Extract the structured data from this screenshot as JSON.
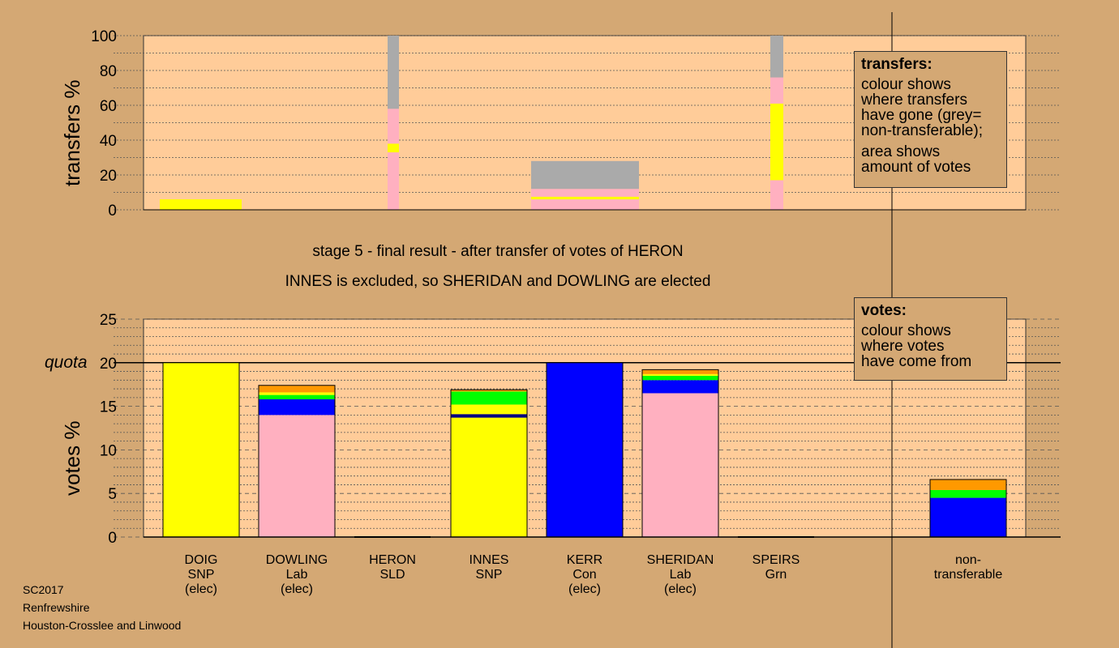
{
  "colors": {
    "bg": "#d4a874",
    "plot": "#ffcc99",
    "SNP": "#ffff00",
    "Lab": "#ffb0c0",
    "Con": "#0000ff",
    "LD": "#ff9900",
    "Grn": "#00ff00",
    "non": "#aaaaaa",
    "navy": "#000080"
  },
  "labels": {
    "transfers_axis": "transfers %",
    "votes_axis": "votes %",
    "quota": "quota",
    "stage_title": "stage 5 - final result - after transfer of votes of HERON",
    "stage_subtitle": "INNES is excluded, so SHERIDAN and DOWLING are elected"
  },
  "legend_transfers": {
    "heading": "transfers:",
    "lines": [
      "colour shows",
      "where transfers",
      "have gone (grey=",
      "non-transferable);"
    ],
    "lines2": [
      "area shows",
      "amount of votes"
    ]
  },
  "legend_votes": {
    "heading": "votes:",
    "lines": [
      "colour shows",
      "where votes",
      "have come from"
    ]
  },
  "footer": {
    "election": "SC2017",
    "council": "Renfrewshire",
    "ward": "Houston-Crosslee and Linwood"
  },
  "candidates": [
    {
      "name": "DOIG",
      "party": "SNP",
      "status": "(elec)"
    },
    {
      "name": "DOWLING",
      "party": "Lab",
      "status": "(elec)"
    },
    {
      "name": "HERON",
      "party": "SLD",
      "status": ""
    },
    {
      "name": "INNES",
      "party": "SNP",
      "status": ""
    },
    {
      "name": "KERR",
      "party": "Con",
      "status": "(elec)"
    },
    {
      "name": "SHERIDAN",
      "party": "Lab",
      "status": "(elec)"
    },
    {
      "name": "SPEIRS",
      "party": "Grn",
      "status": ""
    }
  ],
  "nontransferable": {
    "line1": "non-",
    "line2": "transferable"
  },
  "chart_data": [
    {
      "type": "bar",
      "title": "",
      "ylabel": "transfers %",
      "ylim": [
        0,
        100
      ],
      "yticks": [
        0,
        20,
        40,
        60,
        80,
        100
      ],
      "description_of_encoding": "stacked",
      "columns": [
        {
          "label": "DOIG",
          "share": 0.75,
          "segments": [
            {
              "color": "SNP",
              "from": 0,
              "to": 6
            }
          ]
        },
        {
          "label": "HERON",
          "share": 0.1,
          "segments": [
            {
              "color": "Lab",
              "from": 0,
              "to": 33
            },
            {
              "color": "SNP",
              "from": 33,
              "to": 38
            },
            {
              "color": "Lab",
              "from": 38,
              "to": 58
            },
            {
              "color": "non",
              "from": 58,
              "to": 100
            }
          ]
        },
        {
          "label": "INNES/KERR",
          "share": 1.0,
          "segments": [
            {
              "color": "Lab",
              "from": 0,
              "to": 6
            },
            {
              "color": "SNP",
              "from": 6,
              "to": 7.5
            },
            {
              "color": "Lab",
              "from": 7.5,
              "to": 12
            },
            {
              "color": "non",
              "from": 12,
              "to": 28
            }
          ]
        },
        {
          "label": "SPEIRS",
          "share": 0.1,
          "segments": [
            {
              "color": "Lab",
              "from": 0,
              "to": 17
            },
            {
              "color": "SNP",
              "from": 17,
              "to": 61
            },
            {
              "color": "Lab",
              "from": 61,
              "to": 76
            },
            {
              "color": "non",
              "from": 76,
              "to": 100
            }
          ]
        }
      ]
    },
    {
      "type": "bar",
      "title": "",
      "ylabel": "votes %",
      "ylim": [
        0,
        25
      ],
      "yticks": [
        0,
        5,
        10,
        15,
        20,
        25
      ],
      "quota": 20,
      "categories": [
        "DOIG",
        "DOWLING",
        "HERON",
        "INNES",
        "KERR",
        "SHERIDAN",
        "SPEIRS",
        "non-transferable"
      ],
      "stacks": [
        [
          {
            "color": "SNP",
            "value": 20
          }
        ],
        [
          {
            "color": "Lab",
            "value": 14
          },
          {
            "color": "Con",
            "value": 1.8
          },
          {
            "color": "Grn",
            "value": 0.5
          },
          {
            "color": "SNP",
            "value": 0.3
          },
          {
            "color": "LD",
            "value": 0.8
          }
        ],
        [],
        [
          {
            "color": "SNP",
            "value": 13.7
          },
          {
            "color": "navy",
            "value": 0.4
          },
          {
            "color": "SNP",
            "value": 1.1
          },
          {
            "color": "Grn",
            "value": 1.5
          },
          {
            "color": "LD",
            "value": 0.2
          }
        ],
        [
          {
            "color": "Con",
            "value": 20
          }
        ],
        [
          {
            "color": "Lab",
            "value": 16.5
          },
          {
            "color": "Con",
            "value": 1.5
          },
          {
            "color": "Grn",
            "value": 0.5
          },
          {
            "color": "SNP",
            "value": 0.2
          },
          {
            "color": "LD",
            "value": 0.5
          }
        ],
        [],
        [
          {
            "color": "Con",
            "value": 4.5
          },
          {
            "color": "Grn",
            "value": 0.9
          },
          {
            "color": "LD",
            "value": 1.2
          }
        ]
      ]
    }
  ]
}
